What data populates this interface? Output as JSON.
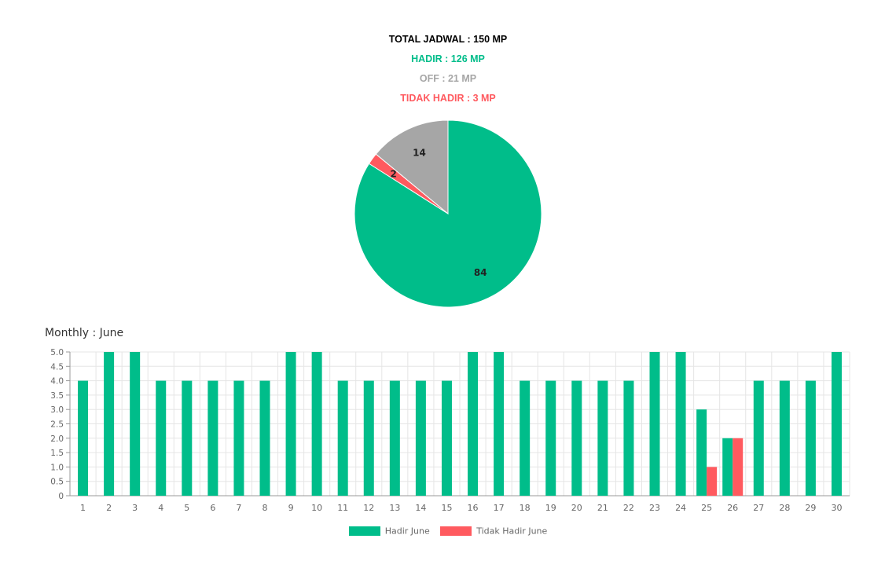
{
  "summary": {
    "total": "TOTAL JADWAL : 150 MP",
    "hadir": "HADIR : 126 MP",
    "off": "OFF : 21 MP",
    "tidak_hadir": "TIDAK HADIR : 3 MP"
  },
  "colors": {
    "hadir": "#00BD8A",
    "off": "#A6A6A6",
    "tidak_hadir": "#FF5A5F",
    "total": "#000000",
    "grid": "#E5E5E5",
    "axis": "#999999",
    "tick": "#666666"
  },
  "monthly_title": "Monthly : June",
  "chart_data": [
    {
      "type": "pie",
      "labels": [
        "Hadir",
        "Tidak Hadir",
        "Off"
      ],
      "values": [
        84,
        2,
        14
      ],
      "start": "top",
      "direction": "clockwise"
    },
    {
      "type": "bar",
      "categories": [
        "1",
        "2",
        "3",
        "4",
        "5",
        "6",
        "7",
        "8",
        "9",
        "10",
        "11",
        "12",
        "13",
        "14",
        "15",
        "16",
        "17",
        "18",
        "19",
        "20",
        "21",
        "22",
        "23",
        "24",
        "25",
        "26",
        "27",
        "28",
        "29",
        "30"
      ],
      "series": [
        {
          "name": "Hadir June",
          "values": [
            4,
            5,
            5,
            4,
            4,
            4,
            4,
            4,
            5,
            5,
            4,
            4,
            4,
            4,
            4,
            5,
            5,
            4,
            4,
            4,
            4,
            4,
            5,
            5,
            3,
            2,
            4,
            4,
            4,
            5
          ]
        },
        {
          "name": "Tidak Hadir June",
          "values": [
            0,
            0,
            0,
            0,
            0,
            0,
            0,
            0,
            0,
            0,
            0,
            0,
            0,
            0,
            0,
            0,
            0,
            0,
            0,
            0,
            0,
            0,
            0,
            0,
            1,
            2,
            0,
            0,
            0,
            0
          ]
        }
      ],
      "yticks": [
        "0",
        "0.5",
        "1.0",
        "1.5",
        "2.0",
        "2.5",
        "3.0",
        "3.5",
        "4.0",
        "4.5",
        "5.0"
      ],
      "ylim": [
        0,
        5
      ],
      "grid": true,
      "legend": "bottom"
    }
  ]
}
